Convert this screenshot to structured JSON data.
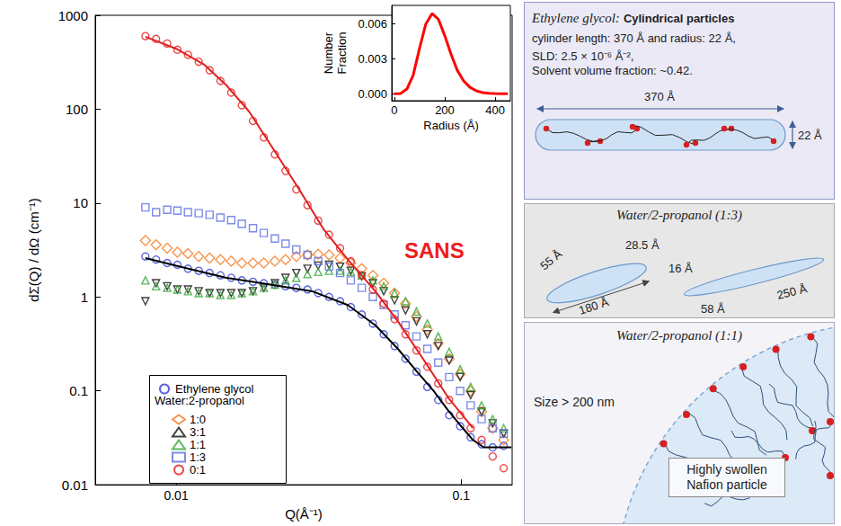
{
  "chart_data": [
    {
      "type": "scatter",
      "xlabel": "Q(Å⁻¹)",
      "ylabel": "dΣ(Q) / dΩ (cm⁻¹)",
      "annotation": "SANS",
      "legend_title": "Water:2-propanol",
      "log": true,
      "grid": false,
      "legend": "lower left",
      "xlim": [
        0.0052,
        0.151
      ],
      "ylim": [
        0.01,
        1000
      ],
      "xticks": [
        0.01,
        0.1
      ],
      "yticks": [
        0.01,
        0.1,
        1,
        10,
        100,
        1000
      ],
      "x": [
        0.0078,
        0.0085,
        0.0093,
        0.0101,
        0.011,
        0.012,
        0.0131,
        0.0143,
        0.0156,
        0.017,
        0.0186,
        0.0203,
        0.0222,
        0.0242,
        0.0264,
        0.0289,
        0.0315,
        0.0344,
        0.0376,
        0.041,
        0.0448,
        0.049,
        0.0535,
        0.0584,
        0.0638,
        0.0697,
        0.0761,
        0.0831,
        0.0908,
        0.0992,
        0.108,
        0.118,
        0.129,
        0.141
      ],
      "series": [
        {
          "name": "Ethylene glycol",
          "color": "#2e3fd6",
          "marker": "circle",
          "values": [
            2.7,
            2.5,
            2.3,
            2.2,
            2.0,
            1.9,
            1.8,
            1.7,
            1.6,
            1.5,
            1.45,
            1.4,
            1.35,
            1.3,
            1.25,
            1.2,
            1.1,
            1.0,
            0.9,
            0.78,
            0.65,
            0.52,
            0.4,
            0.3,
            0.22,
            0.16,
            0.11,
            0.08,
            0.055,
            0.042,
            0.032,
            0.027,
            0.025,
            0.026
          ],
          "fit": {
            "color": "#000000",
            "x": [
              0.0078,
              0.01,
              0.015,
              0.02,
              0.03,
              0.04,
              0.05,
              0.06,
              0.07,
              0.08,
              0.09,
              0.1,
              0.11,
              0.12,
              0.15
            ],
            "values": [
              2.6,
              2.15,
              1.6,
              1.4,
              1.15,
              0.82,
              0.5,
              0.28,
              0.16,
              0.1,
              0.062,
              0.042,
              0.03,
              0.025,
              0.025
            ]
          }
        },
        {
          "name": "1:0",
          "color": "#f47b20",
          "marker": "diamond",
          "values": [
            4.0,
            3.6,
            3.3,
            3.0,
            2.9,
            2.7,
            2.6,
            2.5,
            2.4,
            2.3,
            2.3,
            2.3,
            2.4,
            2.5,
            2.7,
            2.8,
            2.85,
            2.8,
            2.6,
            2.3,
            2.0,
            1.7,
            1.4,
            1.1,
            0.85,
            0.62,
            0.45,
            0.32,
            0.22,
            0.15,
            0.1,
            0.06,
            0.04,
            0.03
          ]
        },
        {
          "name": "3:1",
          "color": "#111111",
          "marker": "triangle-down",
          "values": [
            0.9,
            1.4,
            1.3,
            1.2,
            1.2,
            1.15,
            1.1,
            1.1,
            1.1,
            1.1,
            1.15,
            1.25,
            1.4,
            1.6,
            1.8,
            2.0,
            2.15,
            2.2,
            2.1,
            1.9,
            1.65,
            1.4,
            1.15,
            0.92,
            0.72,
            0.55,
            0.4,
            0.3,
            0.21,
            0.14,
            0.09,
            0.06,
            0.045,
            0.035
          ]
        },
        {
          "name": "1:1",
          "color": "#34a534",
          "marker": "triangle",
          "values": [
            1.5,
            1.3,
            1.25,
            1.2,
            1.15,
            1.1,
            1.1,
            1.05,
            1.05,
            1.1,
            1.15,
            1.25,
            1.35,
            1.5,
            1.6,
            1.75,
            1.85,
            1.9,
            1.9,
            1.85,
            1.7,
            1.5,
            1.3,
            1.1,
            0.9,
            0.7,
            0.52,
            0.38,
            0.26,
            0.17,
            0.11,
            0.07,
            0.05,
            0.04
          ]
        },
        {
          "name": "1:3",
          "color": "#5b6ee1",
          "marker": "square",
          "values": [
            9.0,
            8.0,
            8.5,
            8.3,
            8.0,
            7.8,
            7.5,
            7.0,
            6.6,
            6.0,
            5.4,
            4.8,
            4.2,
            3.7,
            3.2,
            2.8,
            2.4,
            2.1,
            1.8,
            1.5,
            1.25,
            1.0,
            0.82,
            0.65,
            0.5,
            0.38,
            0.28,
            0.2,
            0.14,
            0.1,
            0.07,
            0.05,
            0.04,
            0.035
          ]
        },
        {
          "name": "0:1",
          "color": "#e41e1e",
          "marker": "circle",
          "values": [
            600,
            560,
            500,
            430,
            380,
            320,
            260,
            200,
            150,
            110,
            75,
            50,
            33,
            22,
            14,
            9.5,
            6.5,
            4.6,
            3.3,
            2.4,
            1.7,
            1.2,
            0.85,
            0.58,
            0.4,
            0.27,
            0.18,
            0.12,
            0.08,
            0.055,
            0.04,
            0.03,
            0.02,
            0.015
          ],
          "fit": {
            "color": "#e41e1e",
            "x": [
              0.0078,
              0.01,
              0.0125,
              0.015,
              0.018,
              0.022,
              0.027,
              0.033,
              0.04,
              0.05,
              0.06,
              0.075,
              0.09,
              0.11
            ],
            "values": [
              590,
              440,
              300,
              180,
              95,
              37,
              14,
              5.2,
              2.5,
              1.15,
              0.55,
              0.2,
              0.085,
              0.04
            ]
          }
        }
      ]
    },
    {
      "type": "line",
      "xlabel": "Radius (Å)",
      "ylabel": "Number Fraction",
      "grid": false,
      "color": "#ff0000",
      "xlim": [
        -10,
        460
      ],
      "ylim": [
        -0.0006,
        0.0076
      ],
      "xticks": [
        0,
        200,
        400
      ],
      "yticks": [
        {
          "value": 0,
          "label": "0.000"
        },
        0.003,
        0.006
      ],
      "x": [
        0,
        25,
        50,
        75,
        100,
        125,
        150,
        175,
        200,
        225,
        250,
        275,
        300,
        325,
        350,
        375,
        400,
        425,
        450
      ],
      "values": [
        0,
        2e-05,
        0.0004,
        0.0016,
        0.0039,
        0.006,
        0.0069,
        0.0064,
        0.005,
        0.0034,
        0.002,
        0.0011,
        0.00055,
        0.00025,
        0.0001,
        4e-05,
        1e-05,
        0,
        0
      ]
    }
  ],
  "panels": [
    {
      "title": "Ethylene glycol:",
      "subtitle": "Cylindrical particles",
      "lines": [
        "cylinder length: 370 Å and radius: 22 Å,",
        "SLD: 2.5 × 10⁻⁶ Å⁻²,",
        "Solvent volume fraction: ~0.42."
      ],
      "labels": [
        "370 Å",
        "22 Å"
      ]
    },
    {
      "title": "Water/2-propanol (1:3)",
      "labels": [
        "55 Å",
        "28.5 Å",
        "180 Å",
        "16 Å",
        "58 Å",
        "250 Å"
      ]
    },
    {
      "title": "Water/2-propanol (1:1)",
      "labels": [
        "Size > 200 nm",
        "Highly swollen Nafion particle"
      ]
    }
  ]
}
